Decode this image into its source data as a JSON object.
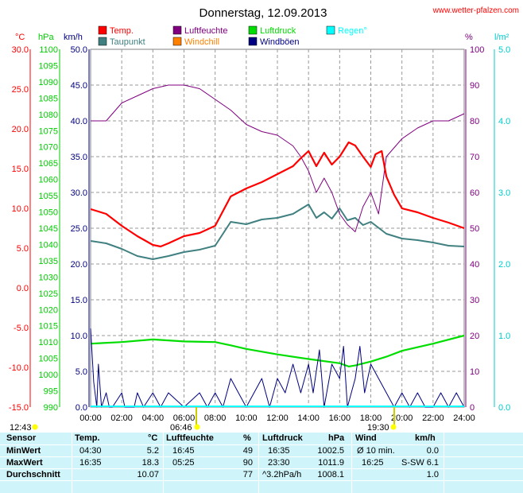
{
  "header": {
    "title": "Donnerstag, 12.09.2013",
    "site": "www.wetter-pfalzen.com"
  },
  "axes_units": {
    "temp": "°C",
    "pressure": "hPa",
    "wind": "km/h",
    "humidity": "%",
    "rain": "l/m²"
  },
  "legend": [
    {
      "label": "Temp.",
      "color": "#ff0000"
    },
    {
      "label": "Luftfeuchte",
      "color": "#800080"
    },
    {
      "label": "Luftdruck",
      "color": "#00dd00"
    },
    {
      "label": "Regen°",
      "color": "#00ffff"
    },
    {
      "label": "Taupunkt",
      "color": "#408080"
    },
    {
      "label": "Windchill",
      "color": "#ff8000"
    },
    {
      "label": "Windböen",
      "color": "#000080"
    }
  ],
  "sun": {
    "sunrise": "06:46",
    "sunset": "19:30",
    "daylength": "12:43"
  },
  "chart_data": {
    "type": "line",
    "x_labels": [
      "00:00",
      "02:00",
      "04:00",
      "06:00",
      "08:00",
      "10:00",
      "12:00",
      "14:00",
      "16:00",
      "18:00",
      "20:00",
      "22:00",
      "24:00"
    ],
    "x_range": [
      0,
      24
    ],
    "axes": {
      "temp": {
        "ticks": [
          "30.0",
          "25.0",
          "20.0",
          "15.0",
          "10.0",
          "5.0",
          "0.0",
          "-5.0",
          "-10.0",
          "-15.0"
        ],
        "range": [
          -15,
          30
        ],
        "color": "#ff0000"
      },
      "pressure": {
        "ticks": [
          "1100",
          "1095",
          "1090",
          "1085",
          "1080",
          "1075",
          "1070",
          "1065",
          "1060",
          "1055",
          "1050",
          "1045",
          "1040",
          "1035",
          "1030",
          "1025",
          "1020",
          "1015",
          "1010",
          "1005",
          "1000",
          "995",
          "990"
        ],
        "range": [
          990,
          1100
        ],
        "color": "#00cc00"
      },
      "wind": {
        "ticks": [
          "50.0",
          "45.0",
          "40.0",
          "35.0",
          "30.0",
          "25.0",
          "20.0",
          "15.0",
          "10.0",
          "5.0",
          "0.0"
        ],
        "range": [
          0,
          50
        ],
        "color": "#000080"
      },
      "humidity": {
        "ticks": [
          "100",
          "90",
          "80",
          "70",
          "60",
          "50",
          "40",
          "30",
          "20",
          "10",
          "0"
        ],
        "range": [
          0,
          100
        ],
        "color": "#800080"
      },
      "rain": {
        "ticks": [
          "5.0",
          "4.0",
          "3.0",
          "2.0",
          "1.0",
          "0.0"
        ],
        "range": [
          0,
          5
        ],
        "color": "#00cccc"
      }
    },
    "series": [
      {
        "name": "Temp.",
        "axis": "temp",
        "color": "#ff0000",
        "points": [
          [
            0,
            9.9
          ],
          [
            1,
            9.3
          ],
          [
            2,
            7.8
          ],
          [
            3,
            6.5
          ],
          [
            4,
            5.4
          ],
          [
            4.5,
            5.2
          ],
          [
            5,
            5.6
          ],
          [
            6,
            6.5
          ],
          [
            7,
            6.9
          ],
          [
            8,
            7.8
          ],
          [
            9,
            11.5
          ],
          [
            10,
            12.5
          ],
          [
            11,
            13.3
          ],
          [
            12,
            14.3
          ],
          [
            13,
            15.3
          ],
          [
            13.5,
            16.3
          ],
          [
            14,
            17.2
          ],
          [
            14.5,
            15.3
          ],
          [
            15,
            17.0
          ],
          [
            15.5,
            15.5
          ],
          [
            16,
            16.5
          ],
          [
            16.58,
            18.3
          ],
          [
            17,
            17.9
          ],
          [
            17.5,
            16.5
          ],
          [
            18,
            15.2
          ],
          [
            18.3,
            16.8
          ],
          [
            18.7,
            17.2
          ],
          [
            19,
            14.0
          ],
          [
            19.5,
            11.7
          ],
          [
            20,
            10.0
          ],
          [
            21,
            9.5
          ],
          [
            22,
            8.8
          ],
          [
            23,
            8.2
          ],
          [
            24,
            7.5
          ]
        ]
      },
      {
        "name": "Taupunkt",
        "axis": "temp",
        "color": "#408080",
        "points": [
          [
            0,
            5.9
          ],
          [
            1,
            5.6
          ],
          [
            2,
            4.9
          ],
          [
            3,
            4.0
          ],
          [
            4,
            3.6
          ],
          [
            5,
            4.0
          ],
          [
            6,
            4.5
          ],
          [
            7,
            4.8
          ],
          [
            8,
            5.3
          ],
          [
            9,
            8.3
          ],
          [
            10,
            8.0
          ],
          [
            11,
            8.6
          ],
          [
            12,
            8.8
          ],
          [
            13,
            9.3
          ],
          [
            14,
            10.5
          ],
          [
            14.5,
            8.8
          ],
          [
            15,
            9.5
          ],
          [
            15.5,
            8.7
          ],
          [
            16,
            10.0
          ],
          [
            16.5,
            8.5
          ],
          [
            17,
            8.8
          ],
          [
            17.5,
            7.9
          ],
          [
            18,
            8.3
          ],
          [
            19,
            6.8
          ],
          [
            20,
            6.2
          ],
          [
            21,
            6.0
          ],
          [
            22,
            5.7
          ],
          [
            23,
            5.3
          ],
          [
            24,
            5.2
          ]
        ]
      },
      {
        "name": "Luftfeuchte",
        "axis": "humidity",
        "color": "#800080",
        "points": [
          [
            0,
            80
          ],
          [
            1,
            80
          ],
          [
            2,
            85
          ],
          [
            3,
            87
          ],
          [
            4,
            89
          ],
          [
            5,
            90
          ],
          [
            5.42,
            90
          ],
          [
            6,
            90
          ],
          [
            7,
            89
          ],
          [
            8,
            86
          ],
          [
            9,
            83
          ],
          [
            10,
            79
          ],
          [
            11,
            77
          ],
          [
            12,
            76
          ],
          [
            13,
            73
          ],
          [
            13.5,
            70
          ],
          [
            14,
            66
          ],
          [
            14.5,
            60
          ],
          [
            15,
            64
          ],
          [
            15.5,
            60
          ],
          [
            16,
            54
          ],
          [
            16.5,
            51
          ],
          [
            17,
            49
          ],
          [
            17.5,
            56
          ],
          [
            18,
            60
          ],
          [
            18.5,
            54
          ],
          [
            19,
            70
          ],
          [
            20,
            75
          ],
          [
            21,
            78
          ],
          [
            22,
            80
          ],
          [
            23,
            80
          ],
          [
            24,
            82
          ]
        ]
      },
      {
        "name": "Luftdruck",
        "axis": "pressure",
        "color": "#00dd00",
        "points": [
          [
            0,
            1009.5
          ],
          [
            2,
            1010.0
          ],
          [
            4,
            1010.8
          ],
          [
            6,
            1010.2
          ],
          [
            8,
            1010.0
          ],
          [
            9,
            1009.0
          ],
          [
            10,
            1007.9
          ],
          [
            12,
            1006.2
          ],
          [
            14,
            1004.8
          ],
          [
            16,
            1003.5
          ],
          [
            16.58,
            1002.5
          ],
          [
            17,
            1002.8
          ],
          [
            18,
            1004.0
          ],
          [
            19,
            1005.5
          ],
          [
            20,
            1007.3
          ],
          [
            22,
            1009.5
          ],
          [
            24,
            1012.0
          ]
        ]
      },
      {
        "name": "Windböen",
        "axis": "wind",
        "color": "#000080",
        "points": [
          [
            0,
            11.0
          ],
          [
            0.2,
            3.5
          ],
          [
            0.4,
            0.0
          ],
          [
            0.5,
            6.0
          ],
          [
            0.7,
            0.0
          ],
          [
            1,
            2.0
          ],
          [
            1.2,
            0.0
          ],
          [
            1.4,
            0.0
          ],
          [
            2,
            2.0
          ],
          [
            2.2,
            0.0
          ],
          [
            2.8,
            0.0
          ],
          [
            3,
            2.0
          ],
          [
            3.4,
            0.0
          ],
          [
            4,
            2.0
          ],
          [
            4.5,
            0.0
          ],
          [
            5,
            2.0
          ],
          [
            6,
            0.0
          ],
          [
            7,
            2.0
          ],
          [
            7.5,
            0.0
          ],
          [
            8,
            2.0
          ],
          [
            8.5,
            0.0
          ],
          [
            9,
            4.0
          ],
          [
            9.5,
            2.0
          ],
          [
            10,
            0.0
          ],
          [
            10.5,
            2.0
          ],
          [
            11,
            4.0
          ],
          [
            11.5,
            0.0
          ],
          [
            12,
            4.0
          ],
          [
            12.5,
            2.0
          ],
          [
            13,
            6.0
          ],
          [
            13.5,
            2.0
          ],
          [
            14,
            6.0
          ],
          [
            14.3,
            2.0
          ],
          [
            14.7,
            8.0
          ],
          [
            15,
            0.0
          ],
          [
            15.5,
            6.0
          ],
          [
            16,
            4.0
          ],
          [
            16.25,
            8.5
          ],
          [
            16.5,
            0.0
          ],
          [
            17,
            4.0
          ],
          [
            17.3,
            8.5
          ],
          [
            17.6,
            2.0
          ],
          [
            18,
            6.0
          ],
          [
            18.5,
            4.0
          ],
          [
            19,
            2.0
          ],
          [
            19.5,
            0.0
          ],
          [
            20,
            2.0
          ],
          [
            20.5,
            0.0
          ],
          [
            21,
            2.0
          ],
          [
            21.5,
            0.0
          ],
          [
            22,
            0.0
          ],
          [
            22.5,
            2.0
          ],
          [
            23,
            0.0
          ],
          [
            23.5,
            2.0
          ],
          [
            24,
            0.0
          ]
        ]
      }
    ]
  },
  "stats": {
    "headers": [
      "Sensor",
      "Temp.",
      "°C",
      "Luftfeuchte",
      "%",
      "Luftdruck",
      "hPa",
      "Wind",
      "km/h"
    ],
    "rows": [
      {
        "label": "MinWert",
        "temp_time": "04:30",
        "temp_val": "5.2",
        "hum_time": "16:45",
        "hum_val": "49",
        "press_time": "16:35",
        "press_val": "1002.5",
        "wind_time": "Ø 10 min.",
        "wind_val": "0.0"
      },
      {
        "label": "MaxWert",
        "temp_time": "16:35",
        "temp_val": "18.3",
        "hum_time": "05:25",
        "hum_val": "90",
        "press_time": "23:30",
        "press_val": "1011.9",
        "wind_time": "16:25",
        "wind_dir": "S-SW",
        "wind_val": "6.1"
      },
      {
        "label": "Durchschnitt",
        "temp_time": "",
        "temp_val": "10.07",
        "hum_time": "",
        "hum_val": "77",
        "press_time": "^3.2hPa/h",
        "press_val": "1008.1",
        "wind_time": "",
        "wind_val": "1.0"
      }
    ]
  }
}
